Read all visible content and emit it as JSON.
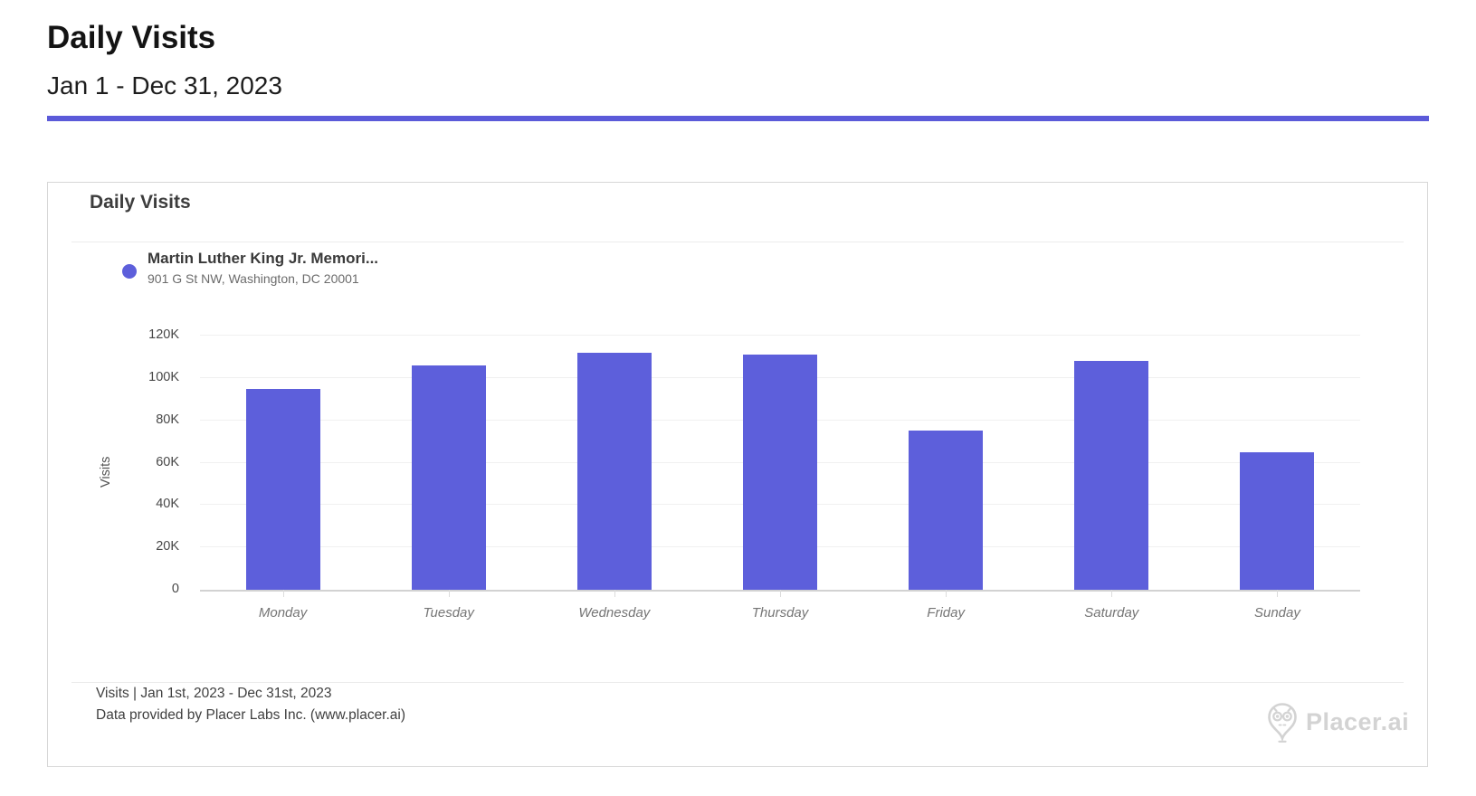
{
  "page": {
    "title": "Daily Visits",
    "subtitle": "Jan 1 - Dec 31, 2023",
    "accent_color": "#5b5ad9"
  },
  "card": {
    "title": "Daily Visits",
    "legend": {
      "name": "Martin Luther King Jr. Memori...",
      "address": "901 G St NW, Washington, DC 20001",
      "dot_color": "#5d5fdb"
    },
    "footer": {
      "line1": "Visits | Jan 1st, 2023 - Dec 31st, 2023",
      "line2": "Data provided by Placer Labs Inc. (www.placer.ai)",
      "brand_text": "Placer.ai"
    }
  },
  "chart_data": {
    "type": "bar",
    "title": "Daily Visits",
    "series_name": "Martin Luther King Jr. Memori...",
    "categories": [
      "Monday",
      "Tuesday",
      "Wednesday",
      "Thursday",
      "Friday",
      "Saturday",
      "Sunday"
    ],
    "values": [
      95000,
      106000,
      112000,
      111000,
      75000,
      108000,
      65000
    ],
    "xlabel": "",
    "ylabel": "Visits",
    "ylim": [
      0,
      120000
    ],
    "ytick_step": 20000,
    "ytick_labels": [
      "0",
      "20K",
      "40K",
      "60K",
      "80K",
      "100K",
      "120K"
    ],
    "bar_color": "#5d5fdb",
    "grid": true,
    "gridline_color": "#f0f0f0",
    "legend_position": "top-left"
  }
}
